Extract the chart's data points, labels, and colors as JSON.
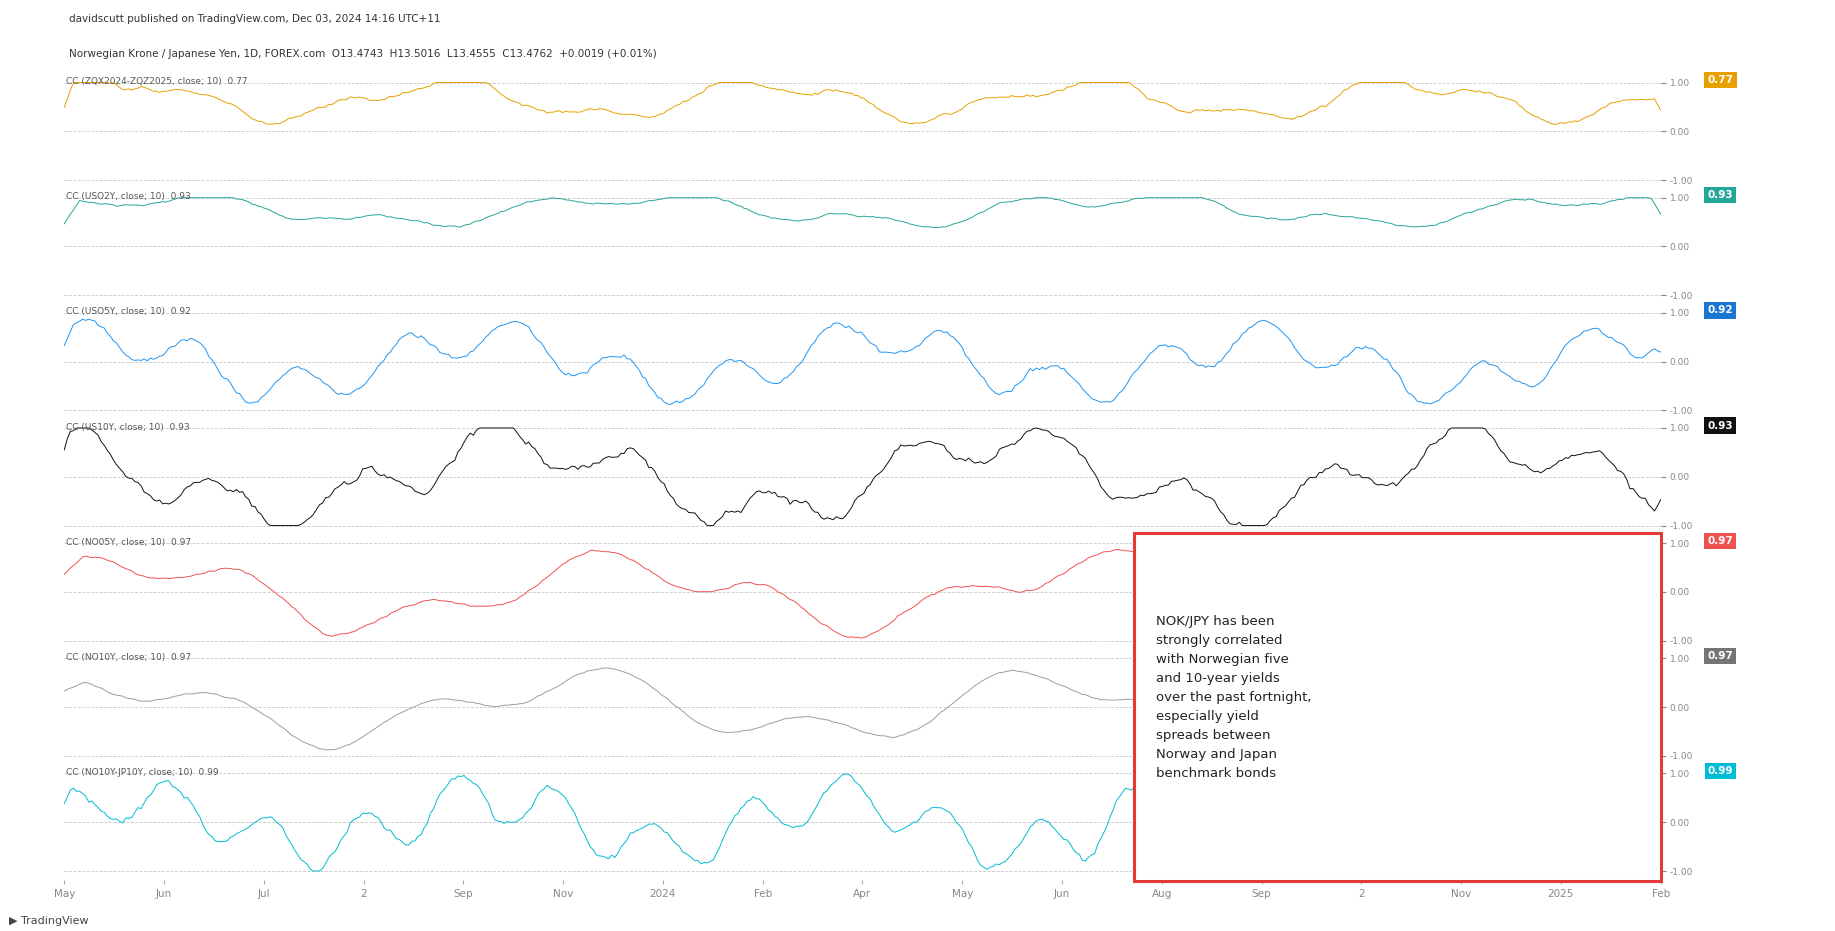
{
  "title_line1": "davidscutt published on TradingView.com, Dec 03, 2024 14:16 UTC+11",
  "title_line2": "Norwegian Krone / Japanese Yen, 1D, FOREX.com  O13.4743  H13.5016  L13.4555  C13.4762  +0.0019 (+0.01%)",
  "series": [
    {
      "label": "CC (ZQX2024-ZQZ2025, close; 10)  0.77",
      "value_label": "0.77",
      "color": "#e8a000",
      "value_bg": "#e8a000"
    },
    {
      "label": "CC (USO2Y, close; 10)  0.93",
      "value_label": "0.93",
      "color": "#26a69a",
      "value_bg": "#26a69a"
    },
    {
      "label": "CC (USO5Y, close; 10)  0.92",
      "value_label": "0.92",
      "color": "#2196f3",
      "value_bg": "#1976d2"
    },
    {
      "label": "CC (US10Y, close; 10)  0.93",
      "value_label": "0.93",
      "color": "#111111",
      "value_bg": "#111111"
    },
    {
      "label": "CC (NO05Y, close; 10)  0.97",
      "value_label": "0.97",
      "color": "#ef5350",
      "value_bg": "#ef5350"
    },
    {
      "label": "CC (NO10Y, close; 10)  0.97",
      "value_label": "0.97",
      "color": "#9e9e9e",
      "value_bg": "#757575"
    },
    {
      "label": "CC (NO10Y-JP10Y, close; 10)  0.99",
      "value_label": "0.99",
      "color": "#00bcd4",
      "value_bg": "#00bcd4"
    }
  ],
  "annotation_text": "NOK/JPY has been\nstrongly correlated\nwith Norwegian five\nand 10-year yields\nover the past fortnight,\nespecially yield\nspreads between\nNorway and Japan\nbenchmark bonds",
  "x_tick_labels": [
    "May",
    "Jun",
    "Jul",
    "2",
    "Sep",
    "Nov",
    "2024",
    "Feb",
    "Apr",
    "May",
    "Jun",
    "Aug",
    "Sep",
    "2",
    "Nov",
    "2025",
    "Feb"
  ],
  "figsize": [
    18.35,
    9.31
  ],
  "dpi": 100,
  "bg_color": "#ffffff",
  "grid_color": "#c8c8c8",
  "label_color": "#555555",
  "tick_color": "#888888"
}
